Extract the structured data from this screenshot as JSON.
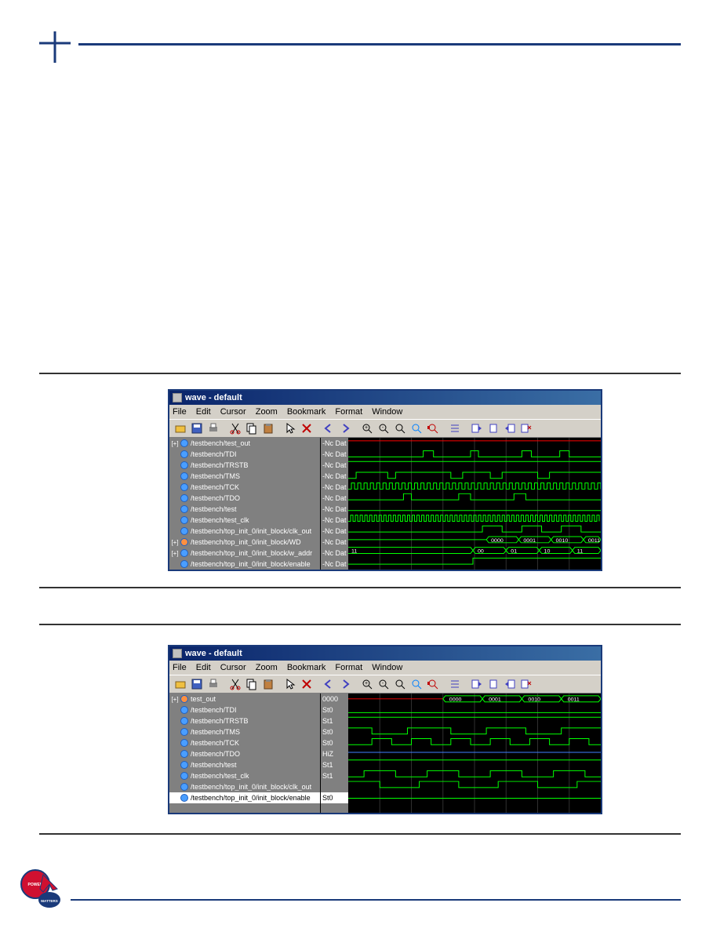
{
  "window_title": "wave - default",
  "menus": [
    "File",
    "Edit",
    "Cursor",
    "Zoom",
    "Bookmark",
    "Format",
    "Window"
  ],
  "menus1": [
    "File",
    "Edit",
    "Cursor",
    "Zoom",
    "Bookmark",
    "Format",
    "Window"
  ],
  "colors": {
    "titlebar_start": "#0a246a",
    "titlebar_end": "#3a6ea5",
    "toolbar_bg": "#d4d0c8",
    "panel_bg": "#808080",
    "wave_bg": "#000000",
    "wave_green": "#00ff00",
    "wave_red": "#ff0000",
    "wave_blue": "#4080ff",
    "wave_white": "#ffffff",
    "header_blue": "#1a3a7a"
  },
  "win1": {
    "signals": [
      {
        "tree": "+",
        "icon": "blue",
        "label": "/testbench/test_out",
        "value": "-Nc Dat"
      },
      {
        "tree": "",
        "icon": "blue",
        "label": "/testbench/TDI",
        "value": "-Nc Dat"
      },
      {
        "tree": "",
        "icon": "blue",
        "label": "/testbench/TRSTB",
        "value": "-Nc Dat"
      },
      {
        "tree": "",
        "icon": "blue",
        "label": "/testbench/TMS",
        "value": "-Nc Dat"
      },
      {
        "tree": "",
        "icon": "blue",
        "label": "/testbench/TCK",
        "value": "-Nc Dat"
      },
      {
        "tree": "",
        "icon": "blue",
        "label": "/testbench/TDO",
        "value": "-Nc Dat"
      },
      {
        "tree": "",
        "icon": "blue",
        "label": "/testbench/test",
        "value": "-Nc Dat"
      },
      {
        "tree": "",
        "icon": "blue",
        "label": "/testbench/test_clk",
        "value": "-Nc Dat"
      },
      {
        "tree": "",
        "icon": "blue",
        "label": "/testbench/top_init_0/init_block/clk_out",
        "value": "-Nc Dat"
      },
      {
        "tree": "+",
        "icon": "orange",
        "label": "/testbench/top_init_0/init_block/WD",
        "value": "-Nc Dat"
      },
      {
        "tree": "+",
        "icon": "blue",
        "label": "/testbench/top_init_0/init_block/w_addr",
        "value": "-Nc Dat"
      },
      {
        "tree": "",
        "icon": "blue",
        "label": "/testbench/top_init_0/init_block/enable",
        "value": "-Nc Dat"
      }
    ],
    "bus_labels_row10": [
      "0000",
      "0001",
      "0010",
      "0011"
    ],
    "bus_labels_row11": [
      "11",
      "00",
      "01",
      "10",
      "11"
    ]
  },
  "win2": {
    "signals": [
      {
        "tree": "+",
        "icon": "orange",
        "label": "test_out",
        "value": "0000"
      },
      {
        "tree": "",
        "icon": "blue",
        "label": "/testbench/TDI",
        "value": "St0"
      },
      {
        "tree": "",
        "icon": "blue",
        "label": "/testbench/TRSTB",
        "value": "St1"
      },
      {
        "tree": "",
        "icon": "blue",
        "label": "/testbench/TMS",
        "value": "St0"
      },
      {
        "tree": "",
        "icon": "blue",
        "label": "/testbench/TCK",
        "value": "St0"
      },
      {
        "tree": "",
        "icon": "blue",
        "label": "/testbench/TDO",
        "value": "HiZ"
      },
      {
        "tree": "",
        "icon": "blue",
        "label": "/testbench/test",
        "value": "St1"
      },
      {
        "tree": "",
        "icon": "blue",
        "label": "/testbench/test_clk",
        "value": "St1"
      },
      {
        "tree": "",
        "icon": "blue",
        "label": "/testbench/top_init_0/init_block/clk_out",
        "value": ""
      },
      {
        "tree": "",
        "icon": "blue",
        "label": "/testbench/top_init_0/init_block/enable",
        "value": "St0",
        "selected": true
      }
    ],
    "bus_labels_row1": [
      "0000",
      "0001",
      "0010",
      "0011"
    ]
  }
}
